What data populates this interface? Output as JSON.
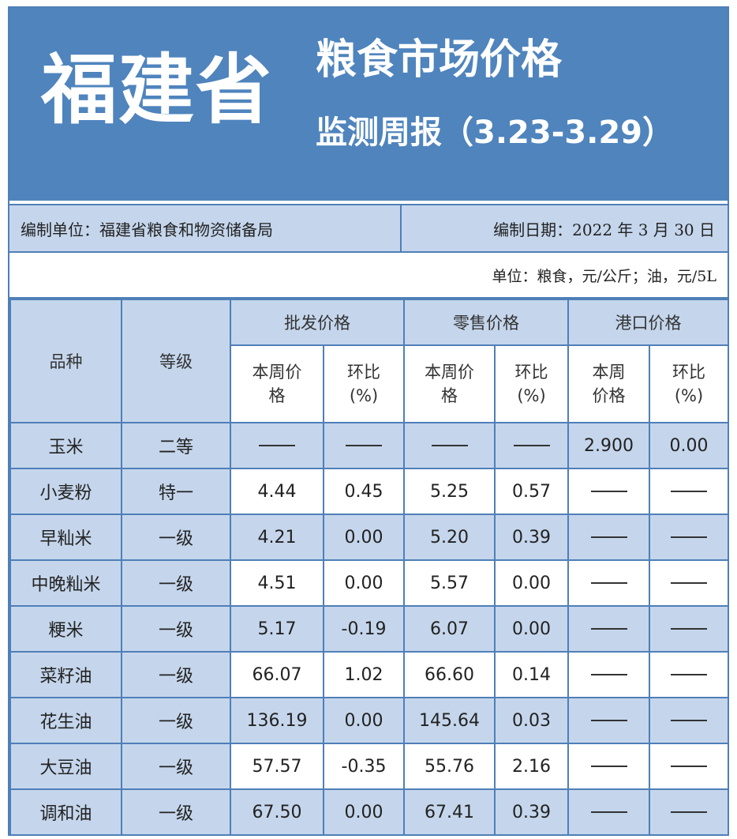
{
  "banner": {
    "province": "福建省",
    "title_line1": "粮食市场价格",
    "title_line2": "监测周报（3.23-3.29）"
  },
  "info": {
    "compiler": "编制单位：福建省粮食和物资储备局",
    "date": "编制日期：2022 年 3 月 30 日"
  },
  "units": "单位：粮食，元/公斤；油，元/5L",
  "headers": {
    "variety": "品种",
    "grade": "等级",
    "wholesale": "批发价格",
    "retail": "零售价格",
    "port": "港口价格",
    "wholesale_price": "本周价格",
    "wholesale_change": "环比(%)",
    "retail_price": "本周价格",
    "retail_change": "环比(%)",
    "port_price": "本周价格",
    "port_change": "环比(%)"
  },
  "rows": [
    {
      "name": "玉米",
      "grade": "二等",
      "w_price": "——",
      "w_change": "——",
      "r_price": "——",
      "r_change": "——",
      "p_price": "2.900",
      "p_change": "0.00"
    },
    {
      "name": "小麦粉",
      "grade": "特一",
      "w_price": "4.44",
      "w_change": "0.45",
      "r_price": "5.25",
      "r_change": "0.57",
      "p_price": "——",
      "p_change": "——"
    },
    {
      "name": "早籼米",
      "grade": "一级",
      "w_price": "4.21",
      "w_change": "0.00",
      "r_price": "5.20",
      "r_change": "0.39",
      "p_price": "——",
      "p_change": "——"
    },
    {
      "name": "中晚籼米",
      "grade": "一级",
      "w_price": "4.51",
      "w_change": "0.00",
      "r_price": "5.57",
      "r_change": "0.00",
      "p_price": "——",
      "p_change": "——"
    },
    {
      "name": "粳米",
      "grade": "一级",
      "w_price": "5.17",
      "w_change": "-0.19",
      "r_price": "6.07",
      "r_change": "0.00",
      "p_price": "——",
      "p_change": "——"
    },
    {
      "name": "菜籽油",
      "grade": "一级",
      "w_price": "66.07",
      "w_change": "1.02",
      "r_price": "66.60",
      "r_change": "0.14",
      "p_price": "——",
      "p_change": "——"
    },
    {
      "name": "花生油",
      "grade": "一级",
      "w_price": "136.19",
      "w_change": "0.00",
      "r_price": "145.64",
      "r_change": "0.03",
      "p_price": "——",
      "p_change": "——"
    },
    {
      "name": "大豆油",
      "grade": "一级",
      "w_price": "57.57",
      "w_change": "-0.35",
      "r_price": "55.76",
      "r_change": "2.16",
      "p_price": "——",
      "p_change": "——"
    },
    {
      "name": "调和油",
      "grade": "一级",
      "w_price": "67.50",
      "w_change": "0.00",
      "r_price": "67.41",
      "r_change": "0.39",
      "p_price": "——",
      "p_change": "——"
    }
  ],
  "colors": {
    "banner": "#4f84bd",
    "header_fill": "#c5d6ec",
    "border": "#4f7fb8"
  }
}
